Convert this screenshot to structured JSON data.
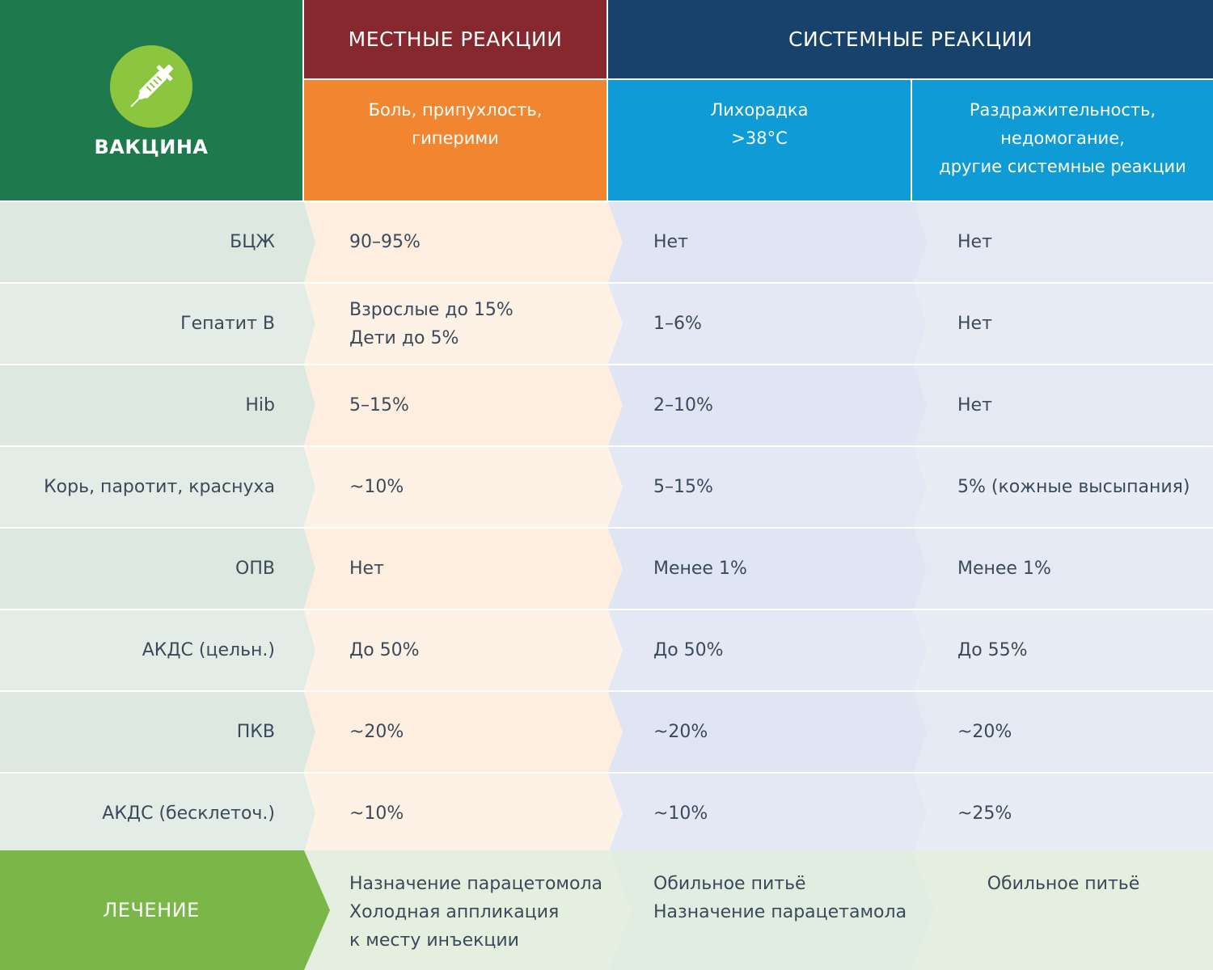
{
  "header": {
    "vaccine_label": "ВАКЦИНА",
    "local_title": "МЕСТНЫЕ РЕАКЦИИ",
    "system_title": "СИСТЕМНЫЕ РЕАКЦИИ",
    "icon": "syringe-icon",
    "sub_local": [
      "Боль, припухлость,",
      "гиперими"
    ],
    "sub_fever": [
      "Лихорадка",
      ">38°C"
    ],
    "sub_irritability": [
      "Раздражительность,",
      "недомогание,",
      "другие системные реакции"
    ]
  },
  "rows": [
    {
      "vaccine": "БЦЖ",
      "local": [
        "90–95%"
      ],
      "fever": "Нет",
      "irritability": "Нет"
    },
    {
      "vaccine": "Гепатит В",
      "local": [
        "Взрослые до 15%",
        "Дети до 5%"
      ],
      "fever": "1–6%",
      "irritability": "Нет"
    },
    {
      "vaccine": "Hib",
      "local": [
        "5–15%"
      ],
      "fever": "2–10%",
      "irritability": "Нет"
    },
    {
      "vaccine": "Корь, паротит, краснуха",
      "local": [
        "~10%"
      ],
      "fever": "5–15%",
      "irritability": "5% (кожные высыпания)"
    },
    {
      "vaccine": "ОПВ",
      "local": [
        "Нет"
      ],
      "fever": "Менее 1%",
      "irritability": "Менее 1%"
    },
    {
      "vaccine": "АКДС (цельн.)",
      "local": [
        "До 50%"
      ],
      "fever": "До 50%",
      "irritability": "До 55%"
    },
    {
      "vaccine": "ПКВ",
      "local": [
        "~20%"
      ],
      "fever": "~20%",
      "irritability": "~20%"
    },
    {
      "vaccine": "АКДС (бесклеточ.)",
      "local": [
        "~10%"
      ],
      "fever": "~10%",
      "irritability": "~25%"
    }
  ],
  "treatment": {
    "label": "ЛЕЧЕНИЕ",
    "local": [
      "Назначение парацетомола",
      "Холодная аппликация",
      "к месту инъекции"
    ],
    "fever": [
      "Обильное питьё",
      "Назначение парацетамола"
    ],
    "irritability": [
      "Обильное питьё"
    ]
  },
  "colors": {
    "vaccine_header": "#1e7a4d",
    "local_header": "#87282f",
    "system_header": "#16426b",
    "local_sub": "#f2852f",
    "system_sub": "#0f9bd6",
    "treatment": "#7ab648",
    "icon_circle": "#8cc63f"
  }
}
